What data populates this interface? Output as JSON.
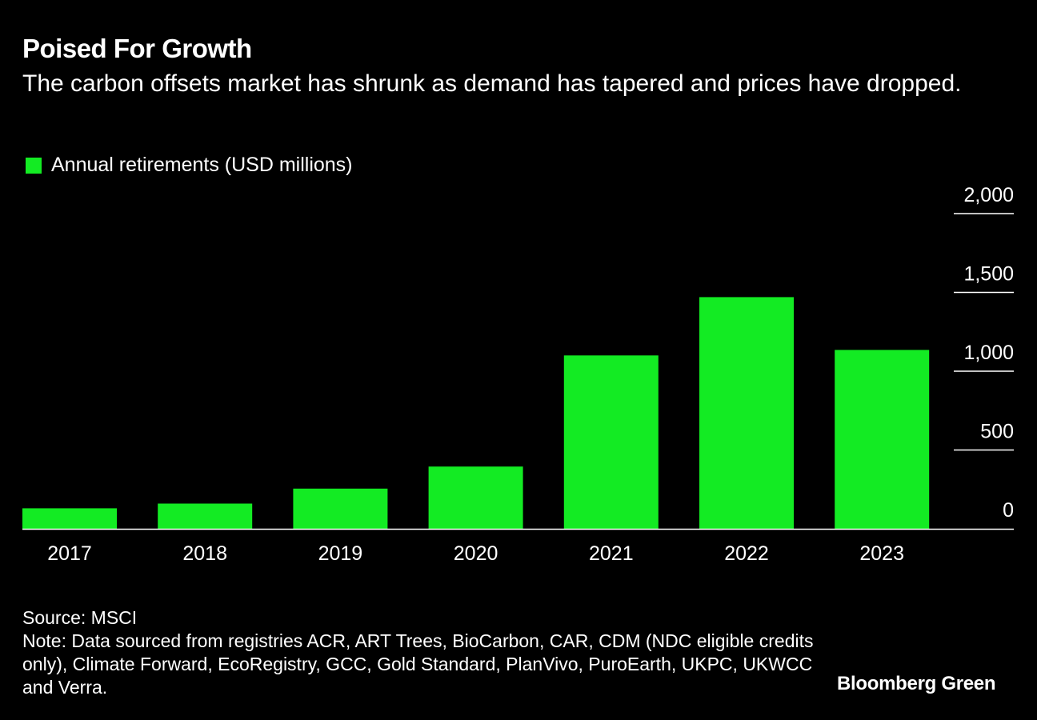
{
  "title": "Poised For Growth",
  "subtitle": "The carbon offsets market has shrunk as demand has tapered and prices have dropped.",
  "source": "Source: MSCI",
  "note": "Note: Data sourced from registries ACR, ART Trees, BioCarbon, CAR, CDM (NDC eligible credits only), Climate Forward, EcoRegistry, GCC, Gold Standard, PlanVivo, PuroEarth, UKPC, UKWCC and Verra.",
  "brand": "Bloomberg Green",
  "colors": {
    "bar": "#13eb23",
    "background": "#000000",
    "text": "#ffffff"
  },
  "chart_data": {
    "type": "bar",
    "title": "Poised For Growth",
    "categories": [
      "2017",
      "2018",
      "2019",
      "2020",
      "2021",
      "2022",
      "2023"
    ],
    "series": [
      {
        "name": "Annual retirements (USD millions)",
        "values": [
          130,
          160,
          255,
          395,
          1100,
          1470,
          1135
        ]
      }
    ],
    "ylim": [
      0,
      2000
    ],
    "yticks": [
      0,
      500,
      1000,
      1500,
      2000
    ],
    "ytick_labels": [
      "0",
      "500",
      "1,000",
      "1,500",
      "2,000"
    ],
    "yaxis_position": "right",
    "grid": true,
    "legend_placement": "top-left"
  }
}
